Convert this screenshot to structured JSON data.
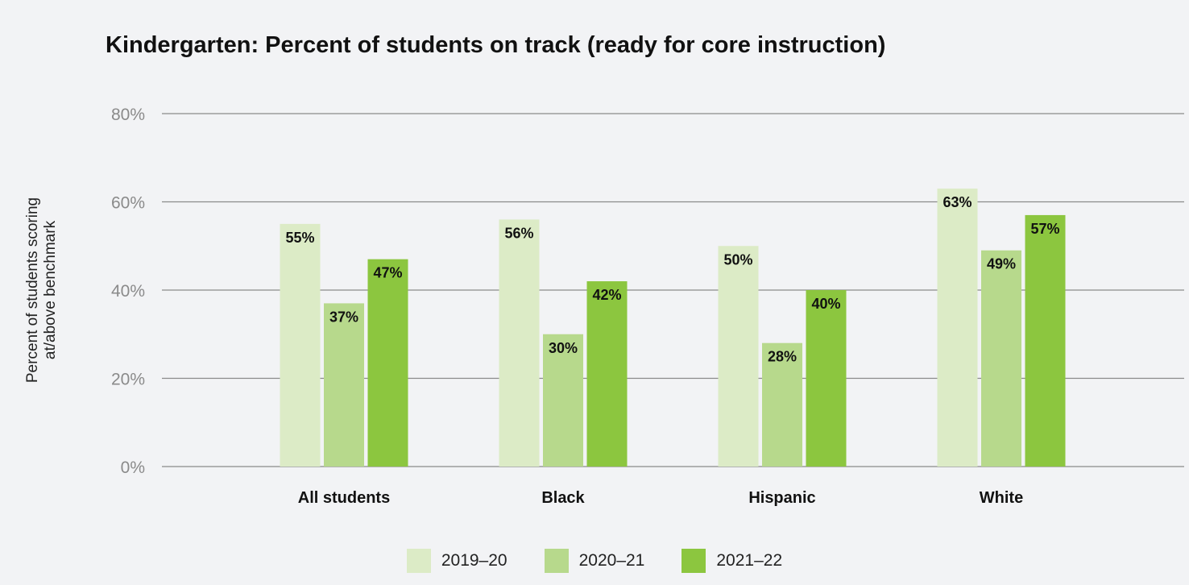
{
  "chart_data": {
    "type": "bar",
    "title": "Kindergarten: Percent of students on track (ready for core instruction)",
    "ylabel_lines": [
      "Percent of students scoring",
      "at/above benchmark"
    ],
    "xlabel": "",
    "ylim": [
      0,
      80
    ],
    "yticks": [
      0,
      20,
      40,
      60,
      80
    ],
    "ytick_labels": [
      "0%",
      "20%",
      "40%",
      "60%",
      "80%"
    ],
    "grid": true,
    "legend_position": "bottom-center",
    "categories": [
      "All students",
      "Black",
      "Hispanic",
      "White"
    ],
    "series": [
      {
        "name": "2019–20",
        "color": "#dcebc6",
        "values": [
          55,
          56,
          50,
          63
        ],
        "labels": [
          "55%",
          "56%",
          "50%",
          "63%"
        ]
      },
      {
        "name": "2020–21",
        "color": "#b7d98c",
        "values": [
          37,
          30,
          28,
          49
        ],
        "labels": [
          "37%",
          "30%",
          "28%",
          "49%"
        ]
      },
      {
        "name": "2021–22",
        "color": "#8cc63f",
        "values": [
          47,
          42,
          40,
          57
        ],
        "labels": [
          "47%",
          "42%",
          "40%",
          "57%"
        ]
      }
    ]
  }
}
